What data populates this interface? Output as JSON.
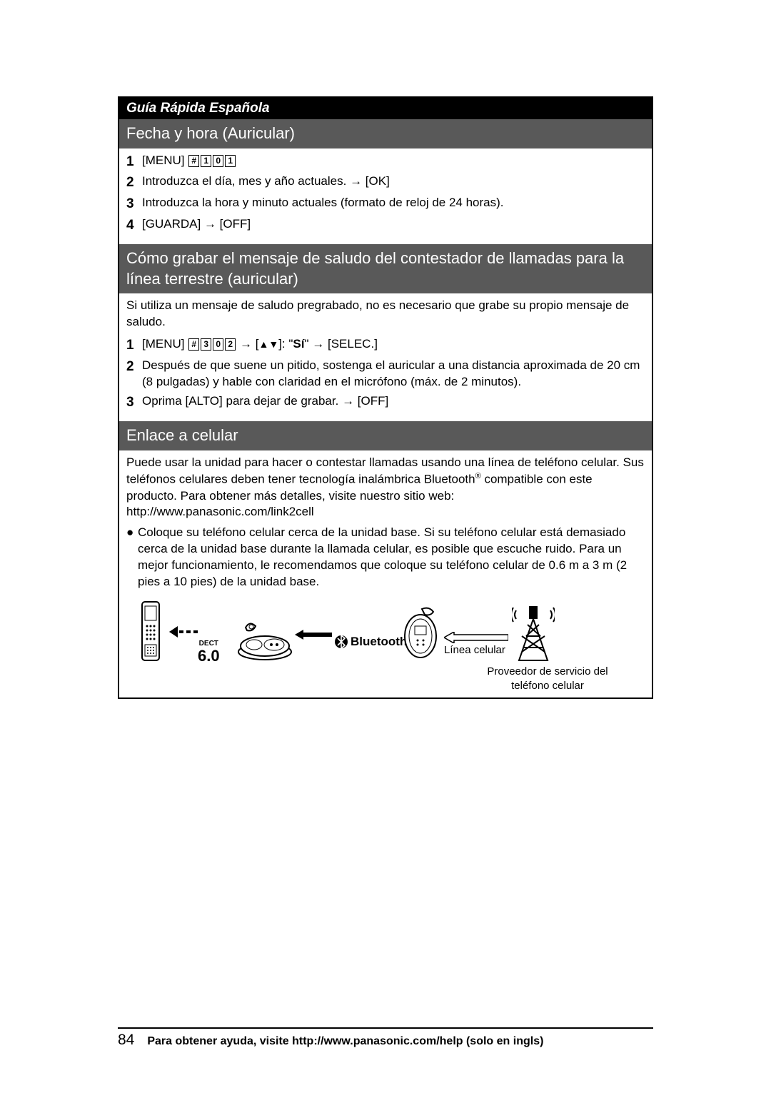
{
  "header": "Guía Rápida Española",
  "sections": {
    "fecha": {
      "title": "Fecha y hora (Auricular)",
      "steps": [
        {
          "n": "1",
          "html": "<span class='btn'>MENU</span> <span class='key'>#</span><span class='key'>1</span><span class='key'>0</span><span class='key'>1</span>"
        },
        {
          "n": "2",
          "html": "Introduzca el día, mes y año actuales. <span class='arrow'>→</span> <span class='btn'>OK</span>"
        },
        {
          "n": "3",
          "html": "Introduzca la hora y minuto actuales (formato de reloj de 24 horas)."
        },
        {
          "n": "4",
          "html": "<span class='btn'>GUARDA</span> <span class='arrow'>→</span> <span class='btn'>OFF</span>"
        }
      ]
    },
    "saludo": {
      "title": "Cómo grabar el mensaje de saludo del contestador de llamadas para la línea terrestre (auricular)",
      "note": "Si utiliza un mensaje de saludo pregrabado, no es necesario que grabe su propio mensaje de saludo.",
      "steps": [
        {
          "n": "1",
          "html": "<span class='btn'>MENU</span> <span class='key'>#</span><span class='key'>3</span><span class='key'>0</span><span class='key'>2</span> <span class='arrow'>→</span> <span class='btn'><span class='updn'>▲▼</span></span>: \"<b>Sí</b>\" <span class='arrow'>→</span> <span class='btn'>SELEC.</span>"
        },
        {
          "n": "2",
          "html": "Después de que suene un pitido, sostenga el auricular a una distancia aproximada de 20 cm (8 pulgadas) y hable con claridad en el micrófono (máx. de 2 minutos)."
        },
        {
          "n": "3",
          "html": "Oprima <span class='btn'>ALTO</span> para dejar de grabar. <span class='arrow'>→</span> <span class='btn'>OFF</span>"
        }
      ]
    },
    "enlace": {
      "title": "Enlace a celular",
      "para": "Puede usar la unidad para hacer o contestar llamadas usando una línea de teléfono celular. Sus teléfonos celulares deben tener tecnología inalámbrica Bluetooth<sup>®</sup> compatible con este producto. Para obtener más detalles, visite nuestro sitio web:",
      "url": "http://www.panasonic.com/link2cell",
      "bullet": "Coloque su teléfono celular cerca de la unidad base. Si su teléfono celular está demasiado cerca de la unidad base durante la llamada celular, es posible que escuche ruido. Para un mejor funcionamiento, le recomendamos que coloque su teléfono celular de 0.6 m a 3 m (2 pies a 10 pies) de la unidad base.",
      "diagram": {
        "dect_top": "DECT",
        "dect_big": "6.0",
        "bluetooth": "Bluetooth",
        "line_label": "Línea celular",
        "provider": "Proveedor de servicio del teléfono celular"
      }
    }
  },
  "footer": {
    "page": "84",
    "text": "Para obtener ayuda, visite http://www.panasonic.com/help (solo en ingls)"
  },
  "colors": {
    "section_bg": "#595959",
    "header_bg": "#000000",
    "text": "#000000",
    "white": "#ffffff"
  }
}
